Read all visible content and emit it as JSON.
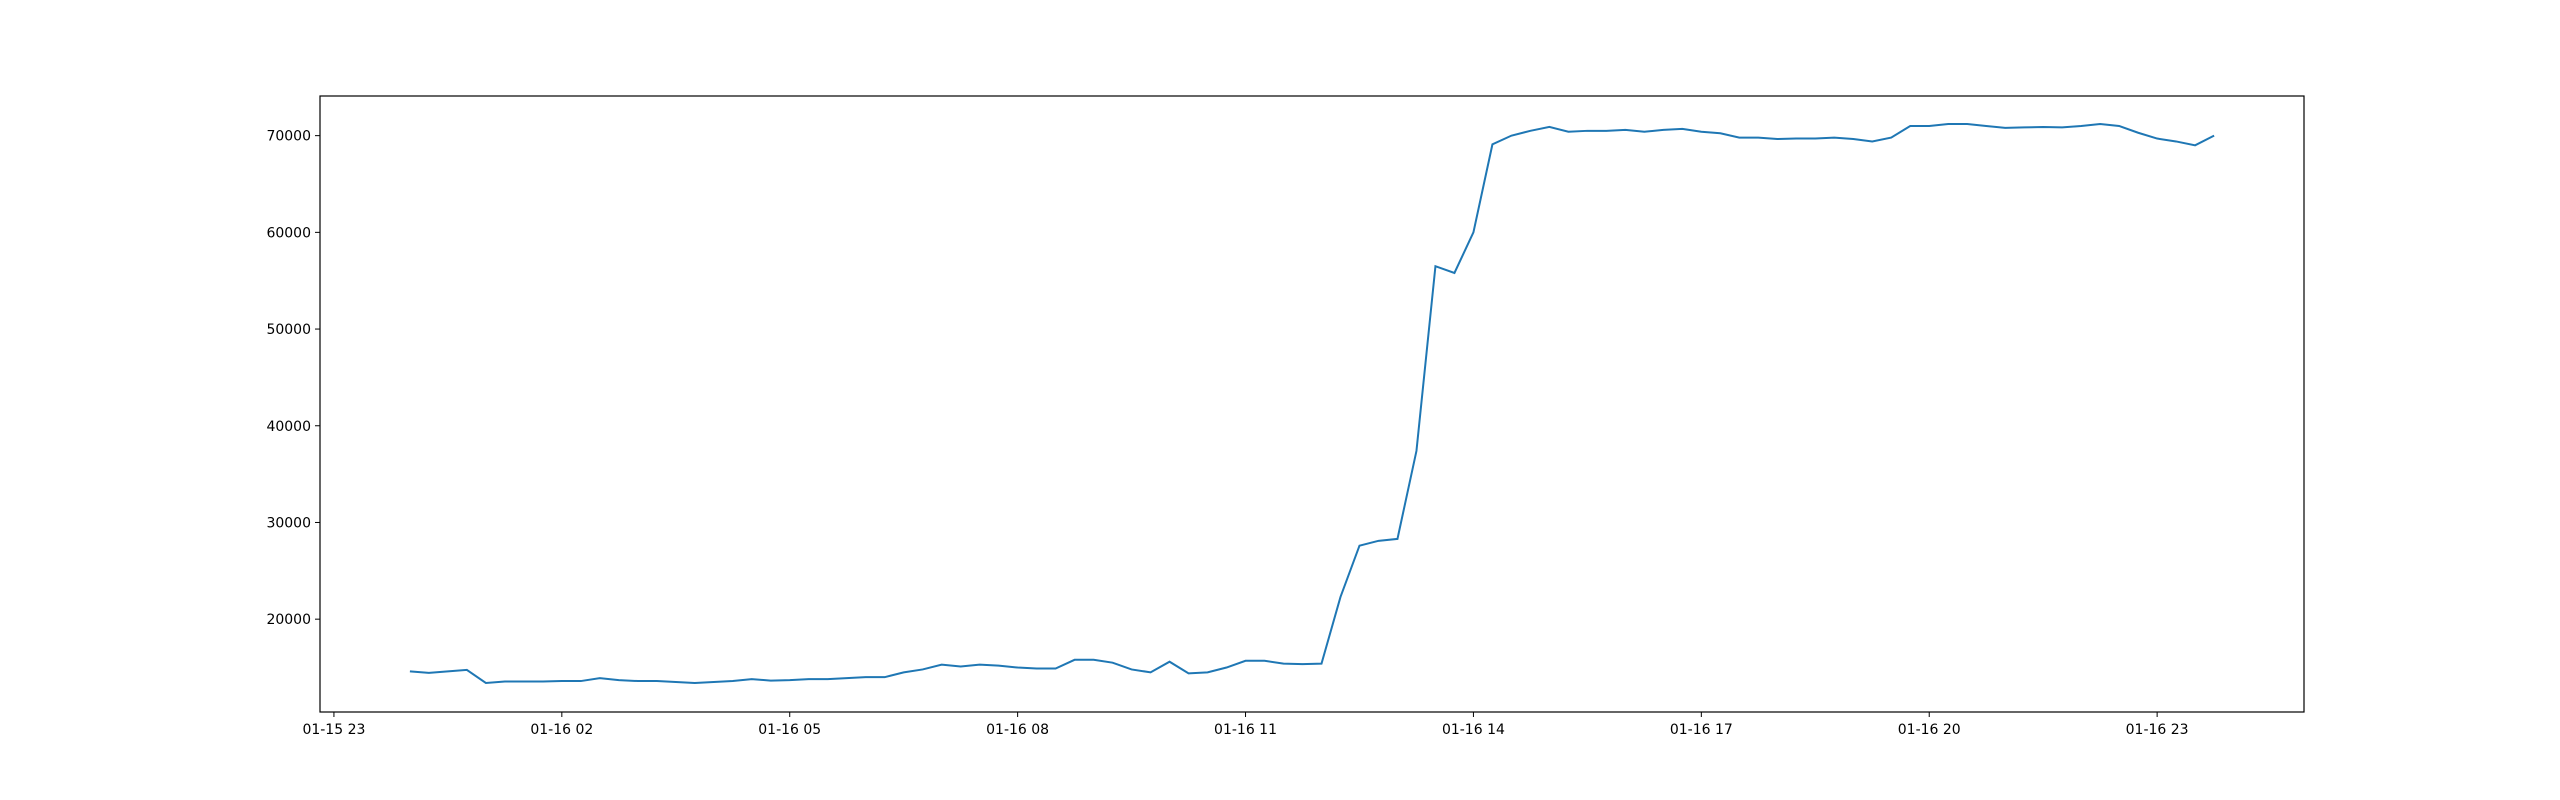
{
  "chart_data": {
    "type": "line",
    "x": [
      "01-16 00:00",
      "01-16 00:15",
      "01-16 00:30",
      "01-16 00:45",
      "01-16 01:00",
      "01-16 01:15",
      "01-16 01:30",
      "01-16 01:45",
      "01-16 02:00",
      "01-16 02:15",
      "01-16 02:30",
      "01-16 02:45",
      "01-16 03:00",
      "01-16 03:15",
      "01-16 03:30",
      "01-16 03:45",
      "01-16 04:00",
      "01-16 04:15",
      "01-16 04:30",
      "01-16 04:45",
      "01-16 05:00",
      "01-16 05:15",
      "01-16 05:30",
      "01-16 05:45",
      "01-16 06:00",
      "01-16 06:15",
      "01-16 06:30",
      "01-16 06:45",
      "01-16 07:00",
      "01-16 07:15",
      "01-16 07:30",
      "01-16 07:45",
      "01-16 08:00",
      "01-16 08:15",
      "01-16 08:30",
      "01-16 08:45",
      "01-16 09:00",
      "01-16 09:15",
      "01-16 09:30",
      "01-16 09:45",
      "01-16 10:00",
      "01-16 10:15",
      "01-16 10:30",
      "01-16 10:45",
      "01-16 11:00",
      "01-16 11:15",
      "01-16 11:30",
      "01-16 11:45",
      "01-16 12:00",
      "01-16 12:15",
      "01-16 12:30",
      "01-16 12:45",
      "01-16 13:00",
      "01-16 13:15",
      "01-16 13:30",
      "01-16 13:45",
      "01-16 14:00",
      "01-16 14:15",
      "01-16 14:30",
      "01-16 14:45",
      "01-16 15:00",
      "01-16 15:15",
      "01-16 15:30",
      "01-16 15:45",
      "01-16 16:00",
      "01-16 16:15",
      "01-16 16:30",
      "01-16 16:45",
      "01-16 17:00",
      "01-16 17:15",
      "01-16 17:30",
      "01-16 17:45",
      "01-16 18:00",
      "01-16 18:15",
      "01-16 18:30",
      "01-16 18:45",
      "01-16 19:00",
      "01-16 19:15",
      "01-16 19:30",
      "01-16 19:45",
      "01-16 20:00",
      "01-16 20:15",
      "01-16 20:30",
      "01-16 20:45",
      "01-16 21:00",
      "01-16 21:15",
      "01-16 21:30",
      "01-16 21:45",
      "01-16 22:00",
      "01-16 22:15",
      "01-16 22:30",
      "01-16 22:45",
      "01-16 23:00",
      "01-16 23:15",
      "01-16 23:30",
      "01-16 23:45"
    ],
    "series": [
      {
        "color": "#1f77b4",
        "values": [
          14600,
          14450,
          14600,
          14750,
          13400,
          13550,
          13550,
          13550,
          13600,
          13600,
          13900,
          13700,
          13600,
          13600,
          13500,
          13400,
          13500,
          13600,
          13800,
          13650,
          13700,
          13800,
          13800,
          13900,
          14000,
          14000,
          14500,
          14800,
          15300,
          15100,
          15300,
          15200,
          15000,
          14900,
          14900,
          15800,
          15800,
          15500,
          14800,
          14500,
          15600,
          14400,
          14500,
          15000,
          15700,
          15700,
          15400,
          15350,
          15400,
          22300,
          27600,
          28100,
          28300,
          37400,
          56500,
          55800,
          60000,
          69100,
          70000,
          70500,
          70900,
          70400,
          70500,
          70500,
          70600,
          70400,
          70600,
          70700,
          70400,
          70250,
          69800,
          69800,
          69650,
          69700,
          69700,
          69800,
          69650,
          69400,
          69800,
          71000,
          71000,
          71200,
          71200,
          71000,
          70800,
          70850,
          70900,
          70850,
          71000,
          71200,
          71000,
          70300,
          69700,
          69400,
          69000,
          70000
        ]
      }
    ],
    "xlim": [
      "01-15 22:49",
      "01-17 00:56"
    ],
    "xticks": [
      "01-15 23",
      "01-16 02",
      "01-16 05",
      "01-16 08",
      "01-16 11",
      "01-16 14",
      "01-16 17",
      "01-16 20",
      "01-16 23"
    ],
    "ylim": [
      10400,
      74100
    ],
    "yticks": [
      20000,
      30000,
      40000,
      50000,
      60000,
      70000
    ]
  }
}
